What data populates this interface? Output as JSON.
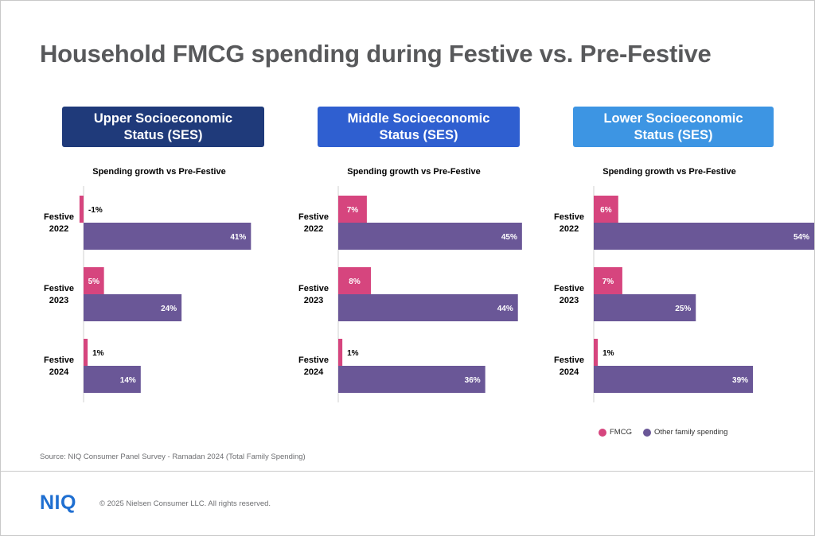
{
  "title": "Household FMCG spending during Festive vs. Pre-Festive",
  "source": "Source: NIQ Consumer Panel Survey - Ramadan 2024 (Total Family Spending)",
  "logo": "NIQ",
  "copyright": "© 2025 Nielsen Consumer LLC. All rights reserved.",
  "legend": {
    "fmcg": "FMCG",
    "other": "Other family spending"
  },
  "colors": {
    "fmcg": "#d6457e",
    "other": "#6a5797",
    "header_upper": "#1f3a7a",
    "header_middle": "#2f5fd0",
    "header_lower": "#3d95e3",
    "title": "#58595b"
  },
  "chart_data": [
    {
      "type": "bar",
      "orientation": "horizontal",
      "title_line1": "Upper Socioeconomic",
      "title_line2": "Status (SES)",
      "subtitle": "Spending growth vs Pre-Festive",
      "categories": [
        [
          "Festive",
          "2022"
        ],
        [
          "Festive",
          "2023"
        ],
        [
          "Festive",
          "2024"
        ]
      ],
      "series": [
        {
          "name": "FMCG",
          "values": [
            -1,
            5,
            1
          ],
          "labels": [
            "-1%",
            "5%",
            "1%"
          ]
        },
        {
          "name": "Other family spending",
          "values": [
            41,
            24,
            14
          ],
          "labels": [
            "41%",
            "24%",
            "14%"
          ]
        }
      ],
      "xlim": [
        -1,
        54
      ]
    },
    {
      "type": "bar",
      "orientation": "horizontal",
      "title_line1": "Middle Socioeconomic",
      "title_line2": "Status (SES)",
      "subtitle": "Spending growth vs Pre-Festive",
      "categories": [
        [
          "Festive",
          "2022"
        ],
        [
          "Festive",
          "2023"
        ],
        [
          "Festive",
          "2024"
        ]
      ],
      "series": [
        {
          "name": "FMCG",
          "values": [
            7,
            8,
            1
          ],
          "labels": [
            "7%",
            "8%",
            "1%"
          ]
        },
        {
          "name": "Other family spending",
          "values": [
            45,
            44,
            36
          ],
          "labels": [
            "45%",
            "44%",
            "36%"
          ]
        }
      ],
      "xlim": [
        -1,
        54
      ]
    },
    {
      "type": "bar",
      "orientation": "horizontal",
      "title_line1": "Lower Socioeconomic",
      "title_line2": "Status (SES)",
      "subtitle": "Spending growth vs Pre-Festive",
      "categories": [
        [
          "Festive",
          "2022"
        ],
        [
          "Festive",
          "2023"
        ],
        [
          "Festive",
          "2024"
        ]
      ],
      "series": [
        {
          "name": "FMCG",
          "values": [
            6,
            7,
            1
          ],
          "labels": [
            "6%",
            "7%",
            "1%"
          ]
        },
        {
          "name": "Other family spending",
          "values": [
            54,
            25,
            39
          ],
          "labels": [
            "54%",
            "25%",
            "39%"
          ]
        }
      ],
      "xlim": [
        -1,
        54
      ]
    }
  ]
}
